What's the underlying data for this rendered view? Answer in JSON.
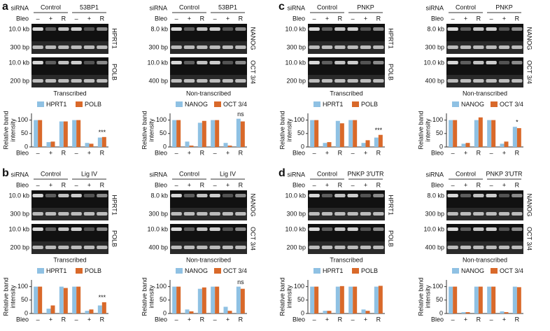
{
  "panels": [
    {
      "label": "a",
      "subfigures": [
        {
          "siRNA": "siRNA",
          "groups": [
            "Control",
            "53BP1"
          ],
          "bleo": "Bleo",
          "treatments": [
            "–",
            "+",
            "R",
            "–",
            "+",
            "R"
          ],
          "gels": [
            {
              "gene": "HPRT1",
              "bands": [
                "10.0 kb",
                "300 bp"
              ]
            },
            {
              "gene": "POLB",
              "bands": [
                "10.0 kb",
                "200 bp"
              ]
            }
          ],
          "caption": "Transcribed"
        },
        {
          "siRNA": "siRNA",
          "groups": [
            "Control",
            "53BP1"
          ],
          "bleo": "Bleo",
          "treatments": [
            "–",
            "+",
            "R",
            "–",
            "+",
            "R"
          ],
          "gels": [
            {
              "gene": "NANOG",
              "bands": [
                "8.0 kb",
                "300 bp"
              ]
            },
            {
              "gene": "OCT 3/4",
              "bands": [
                "10.0 kb",
                "400 bp"
              ]
            }
          ],
          "caption": "Non-transcribed"
        }
      ]
    },
    {
      "label": "c",
      "subfigures": [
        {
          "siRNA": "siRNA",
          "groups": [
            "Control",
            "PNKP"
          ],
          "bleo": "Bleo",
          "treatments": [
            "–",
            "+",
            "R",
            "–",
            "+",
            "R"
          ],
          "gels": [
            {
              "gene": "HPRT1",
              "bands": [
                "10.0 kb",
                "300 bp"
              ]
            },
            {
              "gene": "POLB",
              "bands": [
                "10.0 kb",
                "200 bp"
              ]
            }
          ],
          "caption": "Transcribed"
        },
        {
          "siRNA": "siRNA",
          "groups": [
            "Control",
            "PNKP"
          ],
          "bleo": "Bleo",
          "treatments": [
            "–",
            "+",
            "R",
            "–",
            "+",
            "R"
          ],
          "gels": [
            {
              "gene": "NANOG",
              "bands": [
                "8.0 kb",
                "300 bp"
              ]
            },
            {
              "gene": "OCT 3/4",
              "bands": [
                "10.0 kb",
                "400 bp"
              ]
            }
          ],
          "caption": "Non-transcribed"
        }
      ]
    },
    {
      "label": "b",
      "subfigures": [
        {
          "siRNA": "siRNA",
          "groups": [
            "Control",
            "Lig IV"
          ],
          "bleo": "Bleo",
          "treatments": [
            "–",
            "+",
            "R",
            "–",
            "+",
            "R"
          ],
          "gels": [
            {
              "gene": "HPRT1",
              "bands": [
                "10.0 kb",
                "300 bp"
              ]
            },
            {
              "gene": "POLB",
              "bands": [
                "10.0 kb",
                "200 bp"
              ]
            }
          ],
          "caption": "Transcribed"
        },
        {
          "siRNA": "siRNA",
          "groups": [
            "Control",
            "Lig IV"
          ],
          "bleo": "Bleo",
          "treatments": [
            "–",
            "+",
            "R",
            "–",
            "+",
            "R"
          ],
          "gels": [
            {
              "gene": "NANOG",
              "bands": [
                "8.0 kb",
                "300 bp"
              ]
            },
            {
              "gene": "OCT 3/4",
              "bands": [
                "10.0 kb",
                "400 bp"
              ]
            }
          ],
          "caption": "Non-transcribed"
        }
      ]
    },
    {
      "label": "d",
      "subfigures": [
        {
          "siRNA": "siRNA",
          "groups": [
            "Control",
            "PNKP 3′UTR"
          ],
          "bleo": "Bleo",
          "treatments": [
            "–",
            "+",
            "R",
            "–",
            "+",
            "R"
          ],
          "gels": [
            {
              "gene": "HPRT1",
              "bands": [
                "10.0 kb",
                "300 bp"
              ]
            },
            {
              "gene": "POLB",
              "bands": [
                "10.0 kb",
                "200 bp"
              ]
            }
          ],
          "caption": "Transcribed"
        },
        {
          "siRNA": "siRNA",
          "groups": [
            "Control",
            "PNKP 3′UTR"
          ],
          "bleo": "Bleo",
          "treatments": [
            "–",
            "+",
            "R",
            "–",
            "+",
            "R"
          ],
          "gels": [
            {
              "gene": "NANOG",
              "bands": [
                "8.0 kb",
                "300 bp"
              ]
            },
            {
              "gene": "OCT 3/4",
              "bands": [
                "10.0 kb",
                "400 bp"
              ]
            }
          ],
          "caption": "Non-transcribed"
        }
      ]
    }
  ],
  "chart_data": [
    {
      "type": "bar",
      "ylabel": [
        "Relative band",
        "intensity"
      ],
      "xlabel": "Bleo",
      "categories": [
        "–",
        "+",
        "R",
        "–",
        "+",
        "R"
      ],
      "ylim": [
        0,
        125
      ],
      "yticks": [
        0,
        50,
        100
      ],
      "annotations": [
        null,
        null,
        null,
        null,
        null,
        "***"
      ],
      "series": [
        {
          "name": "HPRT1",
          "color": "#8fc1e3",
          "values": [
            100,
            18,
            95,
            100,
            15,
            35
          ]
        },
        {
          "name": "POLB",
          "color": "#d9692a",
          "values": [
            100,
            20,
            95,
            100,
            12,
            37
          ]
        }
      ]
    },
    {
      "type": "bar",
      "ylabel": [
        "Relative band",
        "intensity"
      ],
      "xlabel": "Bleo",
      "categories": [
        "–",
        "+",
        "R",
        "–",
        "+",
        "R"
      ],
      "ylim": [
        0,
        125
      ],
      "yticks": [
        0,
        50,
        100
      ],
      "annotations": [
        null,
        null,
        null,
        null,
        null,
        "ns"
      ],
      "series": [
        {
          "name": "NANOG",
          "color": "#8fc1e3",
          "values": [
            100,
            20,
            90,
            100,
            15,
            105
          ]
        },
        {
          "name": "OCT 3/4",
          "color": "#d9692a",
          "values": [
            100,
            5,
            97,
            100,
            5,
            95
          ]
        }
      ]
    },
    {
      "type": "bar",
      "ylabel": [
        "Relative band",
        "intensity"
      ],
      "xlabel": "Bleo",
      "categories": [
        "–",
        "+",
        "R",
        "–",
        "+",
        "R"
      ],
      "ylim": [
        0,
        125
      ],
      "yticks": [
        0,
        50,
        100
      ],
      "annotations": [
        null,
        null,
        null,
        null,
        null,
        "***"
      ],
      "series": [
        {
          "name": "HPRT1",
          "color": "#8fc1e3",
          "values": [
            100,
            15,
            97,
            100,
            15,
            35
          ]
        },
        {
          "name": "POLB",
          "color": "#d9692a",
          "values": [
            100,
            18,
            88,
            100,
            25,
            45
          ]
        }
      ]
    },
    {
      "type": "bar",
      "ylabel": [
        "Relative band",
        "intensity"
      ],
      "xlabel": "Bleo",
      "categories": [
        "–",
        "+",
        "R",
        "–",
        "+",
        "R"
      ],
      "ylim": [
        0,
        125
      ],
      "yticks": [
        0,
        50,
        100
      ],
      "annotations": [
        null,
        null,
        null,
        null,
        null,
        "*"
      ],
      "series": [
        {
          "name": "NANOG",
          "color": "#8fc1e3",
          "values": [
            100,
            12,
            100,
            100,
            12,
            75
          ]
        },
        {
          "name": "OCT 3/4",
          "color": "#d9692a",
          "values": [
            100,
            15,
            110,
            100,
            20,
            70
          ]
        }
      ]
    },
    {
      "type": "bar",
      "ylabel": [
        "Relative band",
        "intensity"
      ],
      "xlabel": "Bleo",
      "categories": [
        "–",
        "+",
        "R",
        "–",
        "+",
        "R"
      ],
      "ylim": [
        0,
        125
      ],
      "yticks": [
        0,
        50,
        100
      ],
      "annotations": [
        null,
        null,
        null,
        null,
        null,
        "***"
      ],
      "series": [
        {
          "name": "HPRT1",
          "color": "#8fc1e3",
          "values": [
            100,
            18,
            100,
            100,
            10,
            30
          ]
        },
        {
          "name": "POLB",
          "color": "#d9692a",
          "values": [
            100,
            30,
            95,
            100,
            15,
            42
          ]
        }
      ]
    },
    {
      "type": "bar",
      "ylabel": [
        "Relative band",
        "intensity"
      ],
      "xlabel": "Bleo",
      "categories": [
        "–",
        "+",
        "R",
        "–",
        "+",
        "R"
      ],
      "ylim": [
        0,
        125
      ],
      "yticks": [
        0,
        50,
        100
      ],
      "annotations": [
        null,
        null,
        null,
        null,
        null,
        "ns"
      ],
      "series": [
        {
          "name": "NANOG",
          "color": "#8fc1e3",
          "values": [
            100,
            15,
            92,
            100,
            25,
            100
          ]
        },
        {
          "name": "OCT 3/4",
          "color": "#d9692a",
          "values": [
            100,
            8,
            97,
            100,
            10,
            92
          ]
        }
      ]
    },
    {
      "type": "bar",
      "ylabel": [
        "Relative band",
        "intensity"
      ],
      "xlabel": "Bleo",
      "categories": [
        "–",
        "+",
        "R",
        "–",
        "+",
        "R"
      ],
      "ylim": [
        0,
        125
      ],
      "yticks": [
        0,
        50,
        100
      ],
      "series": [
        {
          "name": "HPRT1",
          "color": "#8fc1e3",
          "values": [
            100,
            10,
            100,
            100,
            15,
            100
          ]
        },
        {
          "name": "POLB",
          "color": "#d9692a",
          "values": [
            100,
            10,
            102,
            100,
            10,
            103
          ]
        }
      ]
    },
    {
      "type": "bar",
      "ylabel": [
        "Relative band",
        "intensity"
      ],
      "xlabel": "Bleo",
      "categories": [
        "–",
        "+",
        "R",
        "–",
        "+",
        "R"
      ],
      "ylim": [
        0,
        125
      ],
      "yticks": [
        0,
        50,
        100
      ],
      "series": [
        {
          "name": "NANOG",
          "color": "#8fc1e3",
          "values": [
            100,
            5,
            100,
            100,
            8,
            100
          ]
        },
        {
          "name": "OCT 3/4",
          "color": "#d9692a",
          "values": [
            100,
            5,
            100,
            100,
            5,
            98
          ]
        }
      ]
    }
  ]
}
